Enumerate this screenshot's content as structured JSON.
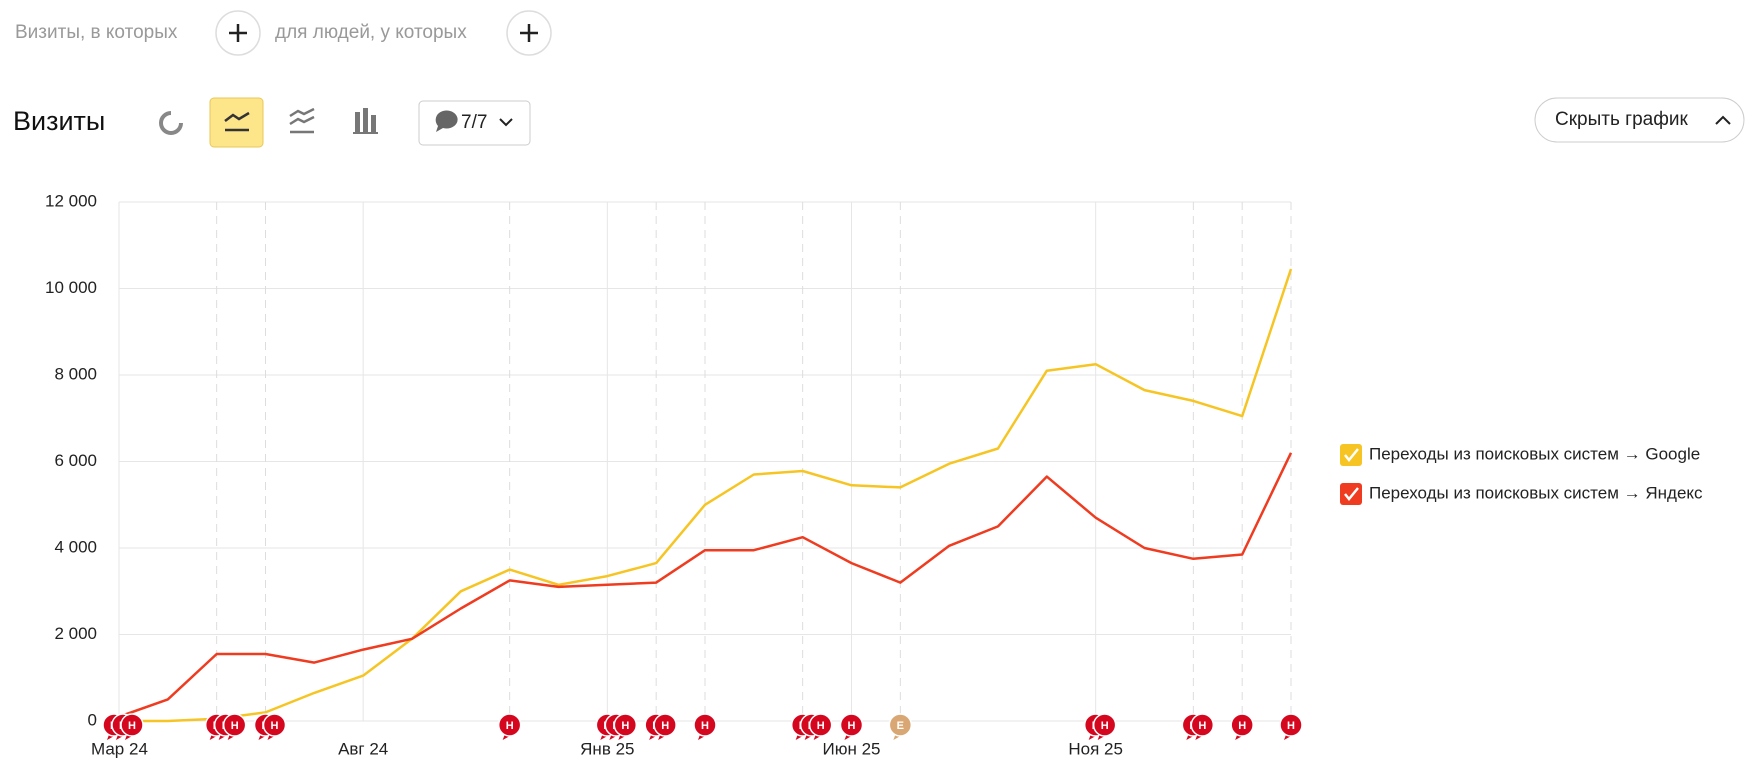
{
  "filters": {
    "visits_label": "Визиты, в которых",
    "people_label": "для людей, у которых"
  },
  "toolbar": {
    "title": "Визиты",
    "annotations_count": "7/7",
    "hide_button": "Скрыть график"
  },
  "chart_data": {
    "type": "line",
    "categories": [
      "Мар 24",
      null,
      null,
      null,
      null,
      "Авг 24",
      null,
      null,
      null,
      null,
      "Янв 25",
      null,
      null,
      null,
      null,
      "Июн 25",
      null,
      null,
      null,
      null,
      "Ноя 25",
      null,
      null,
      null,
      null
    ],
    "series": [
      {
        "name": "Переходы из поисковых систем → Google",
        "color": "#f6c523",
        "values": [
          0,
          0,
          50,
          200,
          650,
          1050,
          1900,
          3000,
          3500,
          3150,
          3350,
          3650,
          5000,
          5700,
          5780,
          5450,
          5400,
          5950,
          6300,
          8100,
          8250,
          7650,
          7400,
          7050,
          10450
        ]
      },
      {
        "name": "Переходы из поисковых систем → Яндекс",
        "color": "#ef3b1f",
        "values": [
          100,
          500,
          1550,
          1550,
          1350,
          1650,
          1900,
          2600,
          3250,
          3100,
          3150,
          3200,
          3950,
          3950,
          4250,
          3650,
          3200,
          4050,
          4500,
          5650,
          4700,
          4000,
          3750,
          3850,
          6200
        ]
      }
    ],
    "ylim": [
      0,
      12000
    ],
    "yticks": [
      0,
      {
        "value": 2000,
        "label": "2 000"
      },
      {
        "value": 4000,
        "label": "4 000"
      },
      {
        "value": 6000,
        "label": "6 000"
      },
      {
        "value": 8000,
        "label": "8 000"
      },
      {
        "value": 10000,
        "label": "10 000"
      },
      {
        "value": 12000,
        "label": "12 000"
      }
    ],
    "grid": true,
    "legend": "right",
    "annotations": [
      {
        "category": 0,
        "label": "Н"
      },
      {
        "category": 0,
        "label": "Н"
      },
      {
        "category": 0,
        "label": "Н"
      },
      {
        "category": 2,
        "label": "Н"
      },
      {
        "category": 2,
        "label": "Н"
      },
      {
        "category": 2,
        "label": "Н"
      },
      {
        "category": 3,
        "label": "Н"
      },
      {
        "category": 3,
        "label": "Н"
      },
      {
        "category": 8,
        "label": "Н"
      },
      {
        "category": 10,
        "label": "Н"
      },
      {
        "category": 10,
        "label": "Н"
      },
      {
        "category": 10,
        "label": "Н"
      },
      {
        "category": 11,
        "label": "Н"
      },
      {
        "category": 11,
        "label": "Н"
      },
      {
        "category": 12,
        "label": "Н"
      },
      {
        "category": 14,
        "label": "Н"
      },
      {
        "category": 14,
        "label": "Н"
      },
      {
        "category": 14,
        "label": "Н"
      },
      {
        "category": 15,
        "label": "Н"
      },
      {
        "category": 16,
        "label": "Е"
      },
      {
        "category": 20,
        "label": "Н"
      },
      {
        "category": 20,
        "label": "Н"
      },
      {
        "category": 22,
        "label": "Н"
      },
      {
        "category": 22,
        "label": "Н"
      },
      {
        "category": 23,
        "label": "Н"
      },
      {
        "category": 24,
        "label": "Н"
      }
    ]
  }
}
